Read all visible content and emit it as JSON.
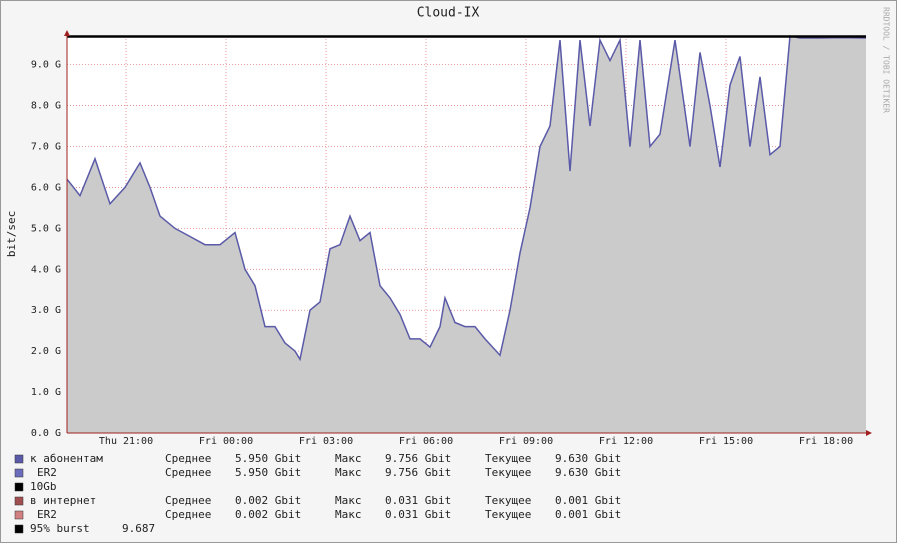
{
  "chart_data": {
    "type": "area",
    "title": "Cloud-IX",
    "y_label": "bit/sec",
    "side_text": "RRDTOOL / TOBI OETIKER",
    "xlim": [
      19.23,
      43.2
    ],
    "ylim": [
      0,
      9.7
    ],
    "xticks": [
      {
        "value": 21,
        "label": "Thu 21:00"
      },
      {
        "value": 24,
        "label": "Fri 00:00"
      },
      {
        "value": 27,
        "label": "Fri 03:00"
      },
      {
        "value": 30,
        "label": "Fri 06:00"
      },
      {
        "value": 33,
        "label": "Fri 09:00"
      },
      {
        "value": 36,
        "label": "Fri 12:00"
      },
      {
        "value": 39,
        "label": "Fri 15:00"
      },
      {
        "value": 42,
        "label": "Fri 18:00"
      }
    ],
    "yticks": [
      {
        "value": 0,
        "label": "0.0 G"
      },
      {
        "value": 1,
        "label": "1.0 G"
      },
      {
        "value": 2,
        "label": "2.0 G"
      },
      {
        "value": 3,
        "label": "3.0 G"
      },
      {
        "value": 4,
        "label": "4.0 G"
      },
      {
        "value": 5,
        "label": "5.0 G"
      },
      {
        "value": 6,
        "label": "6.0 G"
      },
      {
        "value": 7,
        "label": "7.0 G"
      },
      {
        "value": 8,
        "label": "8.0 G"
      },
      {
        "value": 9,
        "label": "9.0 G"
      }
    ],
    "grid": true,
    "series": [
      {
        "name": "к абонентам",
        "color": "#5a5aa8",
        "fill": "#cbcbcb",
        "x": [
          19.23,
          19.62,
          20.07,
          20.52,
          20.97,
          21.42,
          21.72,
          22.02,
          22.47,
          22.92,
          23.37,
          23.82,
          24.27,
          24.57,
          24.87,
          25.17,
          25.47,
          25.77,
          26.07,
          26.22,
          26.52,
          26.82,
          27.12,
          27.42,
          27.72,
          28.02,
          28.32,
          28.62,
          28.92,
          29.22,
          29.52,
          29.82,
          30.12,
          30.42,
          30.57,
          30.87,
          31.17,
          31.47,
          31.77,
          32.22,
          32.52,
          32.82,
          33.12,
          33.42,
          33.72,
          34.02,
          34.32,
          34.62,
          34.92,
          35.22,
          35.52,
          35.82,
          36.12,
          36.42,
          36.72,
          37.02,
          37.47,
          37.92,
          38.22,
          38.52,
          38.82,
          39.12,
          39.42,
          39.72,
          40.02,
          40.32,
          40.62,
          40.92,
          41.22,
          41.82,
          42.42,
          43.2
        ],
        "values": [
          6.2,
          5.8,
          6.7,
          5.6,
          6.0,
          6.6,
          6.0,
          5.3,
          5.0,
          4.8,
          4.6,
          4.6,
          4.9,
          4.0,
          3.6,
          2.6,
          2.6,
          2.2,
          2.0,
          1.8,
          3.0,
          3.2,
          4.5,
          4.6,
          5.3,
          4.7,
          4.9,
          3.6,
          3.3,
          2.9,
          2.3,
          2.3,
          2.1,
          2.6,
          3.3,
          2.7,
          2.6,
          2.6,
          2.3,
          1.9,
          3.0,
          4.4,
          5.5,
          7.0,
          7.5,
          9.6,
          6.4,
          9.6,
          7.5,
          9.6,
          9.1,
          9.6,
          7.0,
          9.6,
          7.0,
          7.3,
          9.6,
          7.0,
          9.3,
          8.0,
          6.5,
          8.5,
          9.2,
          7.0,
          8.7,
          6.8,
          7.0,
          9.7,
          9.65,
          9.65,
          9.66,
          9.65
        ]
      }
    ],
    "burst": 9.687,
    "legend": [
      {
        "name": "к абонентам",
        "color": "#5a5aa8",
        "stats": [
          "Среднее",
          "5.950 Gbit",
          "Макс",
          "9.756 Gbit",
          "Текущее",
          "9.630 Gbit"
        ]
      },
      {
        "name": "ER2",
        "color": "#6c6cbc",
        "stats": [
          "Среднее",
          "5.950 Gbit",
          "Макс",
          "9.756 Gbit",
          "Текущее",
          "9.630 Gbit"
        ]
      },
      {
        "name": "10Gb",
        "color": "#000000",
        "stats": []
      },
      {
        "name": "в интернет",
        "color": "#a05050",
        "stats": [
          "Среднее",
          "0.002 Gbit",
          "Макс",
          "0.031 Gbit",
          "Текущее",
          "0.001 Gbit"
        ]
      },
      {
        "name": "ER2",
        "color": "#d08080",
        "stats": [
          "Среднее",
          "0.002 Gbit",
          "Макс",
          "0.031 Gbit",
          "Текущее",
          "0.001 Gbit"
        ]
      },
      {
        "name": "95% burst",
        "color": "#000000",
        "stats": []
      }
    ]
  }
}
